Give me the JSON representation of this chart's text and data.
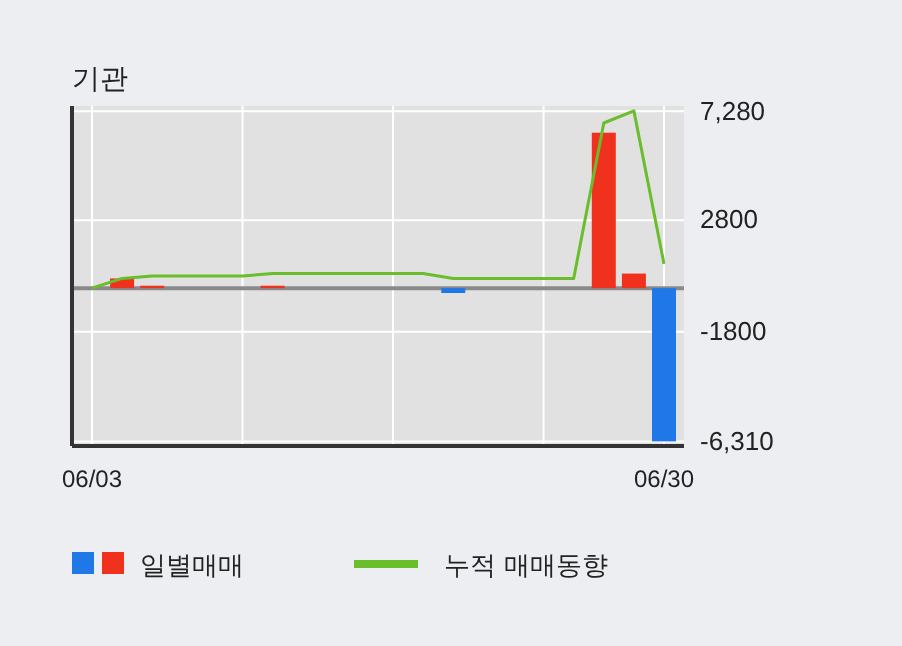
{
  "chart_data": {
    "type": "bar",
    "title": "기관",
    "categories": [
      "06/03",
      null,
      null,
      null,
      null,
      null,
      null,
      null,
      null,
      null,
      null,
      null,
      null,
      null,
      null,
      null,
      null,
      null,
      null,
      "06/30"
    ],
    "series": [
      {
        "name": "일별매매",
        "colors": [
          "#f0311d",
          "#f0311d",
          "#f0311d",
          "#f0311d",
          "#f0311d",
          "#f0311d",
          "#f0311d",
          "#f0311d",
          "#f0311d",
          "#f0311d",
          "#f0311d",
          "#f0311d",
          "#1f77e8",
          "#f0311d",
          "#f0311d",
          "#f0311d",
          "#f0311d",
          "#f0311d",
          "#f0311d",
          "#1f77e8"
        ],
        "values": [
          0,
          400,
          100,
          0,
          0,
          0,
          100,
          0,
          0,
          0,
          0,
          0,
          -200,
          0,
          0,
          0,
          0,
          6400,
          600,
          -6310
        ]
      },
      {
        "name": "누적 매매동향",
        "type": "line",
        "color": "#6abd2b",
        "values": [
          0,
          400,
          500,
          500,
          500,
          500,
          600,
          600,
          600,
          600,
          600,
          600,
          400,
          400,
          400,
          400,
          400,
          6800,
          7300,
          1000
        ]
      }
    ],
    "ylim": [
      -6500,
      7500
    ],
    "yticks": [
      {
        "value": 7280,
        "label": "7,280"
      },
      {
        "value": 2800,
        "label": "2800"
      },
      {
        "value": -1800,
        "label": "-1800"
      },
      {
        "value": -6310,
        "label": "-6,310"
      }
    ],
    "grid": true,
    "legend": "bottom"
  }
}
